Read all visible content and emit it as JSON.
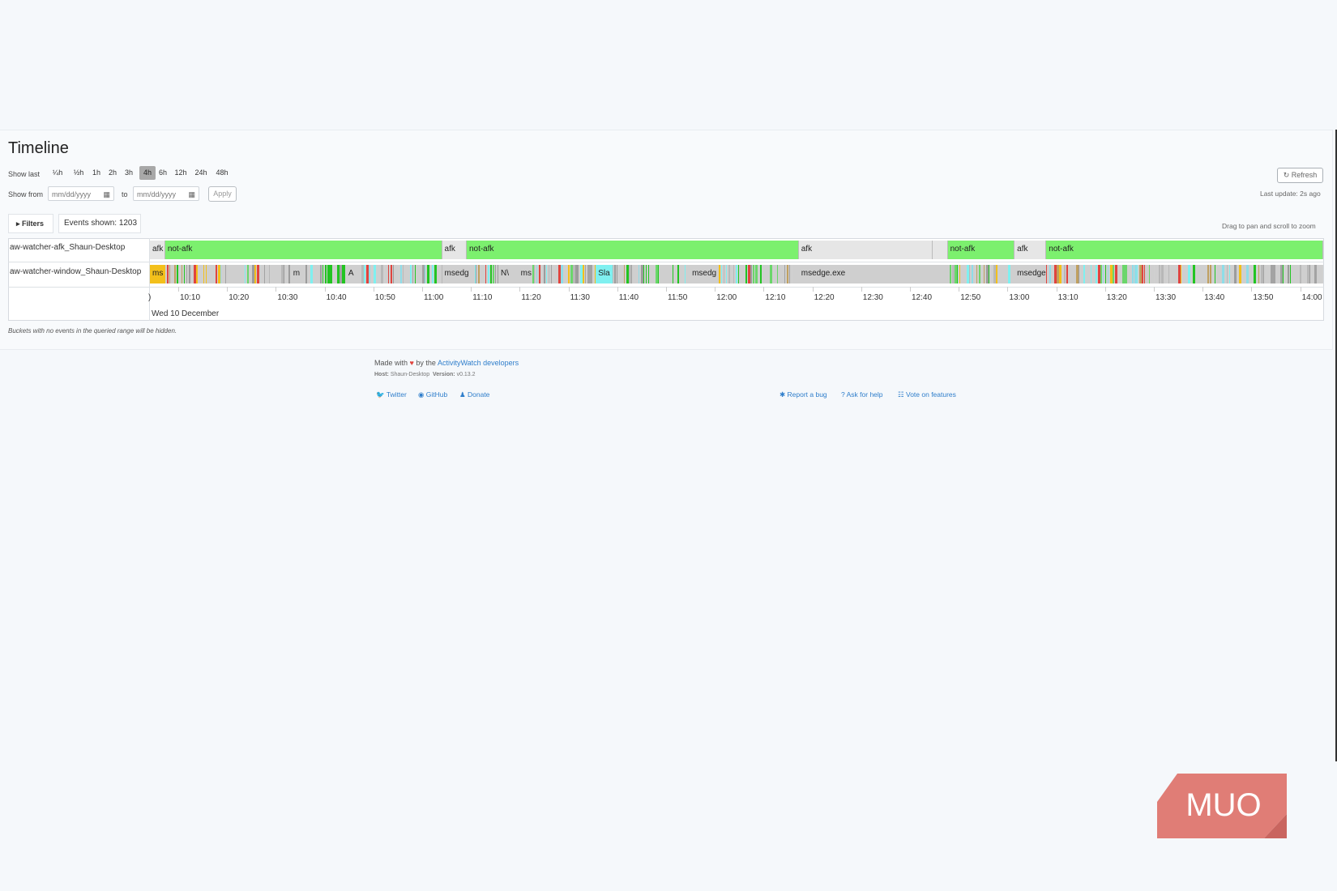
{
  "page": {
    "title": "Timeline"
  },
  "controls": {
    "show_last_label": "Show last",
    "ranges": [
      {
        "label": "¼h",
        "active": false
      },
      {
        "label": "½h",
        "active": false
      },
      {
        "label": "1h",
        "active": false
      },
      {
        "label": "2h",
        "active": false
      },
      {
        "label": "3h",
        "active": false
      },
      {
        "label": "4h",
        "active": true
      },
      {
        "label": "6h",
        "active": false
      },
      {
        "label": "12h",
        "active": false
      },
      {
        "label": "24h",
        "active": false
      },
      {
        "label": "48h",
        "active": false
      }
    ],
    "show_from_label": "Show from",
    "from_placeholder": "mm/dd/yyyy",
    "to_label": "to",
    "to_placeholder": "mm/dd/yyyy",
    "apply_label": "Apply",
    "refresh_label": "Refresh",
    "last_update": "Last update: 2s ago",
    "filters_label": "Filters",
    "events_shown": "Events shown: 1203",
    "drag_hint": "Drag to pan and scroll to zoom"
  },
  "timeline": {
    "rows": [
      {
        "label": "aw-watcher-afk_Shaun-Desktop"
      },
      {
        "label": "aw-watcher-window_Shaun-Desktop"
      }
    ],
    "afk_segments": [
      {
        "label": "afk",
        "start": 0.0,
        "end": 0.013,
        "color": "#e6e6e6"
      },
      {
        "label": "not-afk",
        "start": 0.013,
        "end": 0.249,
        "color": "#7cf06e"
      },
      {
        "label": "afk",
        "start": 0.249,
        "end": 0.27,
        "color": "#e6e6e6"
      },
      {
        "label": "not-afk",
        "start": 0.27,
        "end": 0.553,
        "color": "#7cf06e"
      },
      {
        "label": "afk",
        "start": 0.553,
        "end": 0.667,
        "color": "#e6e6e6"
      },
      {
        "label": "",
        "start": 0.667,
        "end": 0.68,
        "color": "#e6e6e6"
      },
      {
        "label": "not-afk",
        "start": 0.68,
        "end": 0.737,
        "color": "#7cf06e"
      },
      {
        "label": "afk",
        "start": 0.737,
        "end": 0.764,
        "color": "#e6e6e6"
      },
      {
        "label": "not-afk",
        "start": 0.764,
        "end": 1.0,
        "color": "#7cf06e"
      }
    ],
    "window_labels": [
      {
        "label": "ms",
        "start": 0.0,
        "end": 0.013,
        "color": "#f3c01b"
      },
      {
        "label": "m",
        "start": 0.12,
        "end": 0.132,
        "color": "#cfcfcf"
      },
      {
        "label": "A",
        "start": 0.167,
        "end": 0.176,
        "color": "#cfcfcf"
      },
      {
        "label": "msedg",
        "start": 0.249,
        "end": 0.277,
        "color": "#cfcfcf"
      },
      {
        "label": "N\\",
        "start": 0.297,
        "end": 0.308,
        "color": "#cfcfcf"
      },
      {
        "label": "ms",
        "start": 0.314,
        "end": 0.326,
        "color": "#cfcfcf"
      },
      {
        "label": "Sla",
        "start": 0.38,
        "end": 0.394,
        "color": "#7ff0f0"
      },
      {
        "label": "msedg",
        "start": 0.46,
        "end": 0.485,
        "color": "#cfcfcf"
      },
      {
        "label": "msedge.exe",
        "start": 0.553,
        "end": 0.68,
        "color": "#cfcfcf"
      },
      {
        "label": "msedge",
        "start": 0.737,
        "end": 0.764,
        "color": "#cfcfcf"
      }
    ],
    "ticks": [
      "10:10",
      "10:20",
      "10:30",
      "10:40",
      "10:50",
      "11:00",
      "11:10",
      "11:20",
      "11:30",
      "11:40",
      "11:50",
      "12:00",
      "12:10",
      "12:20",
      "12:30",
      "12:40",
      "12:50",
      "13:00",
      "13:10",
      "13:20",
      "13:30",
      "13:40",
      "13:50",
      "14:00"
    ],
    "date_label": "Wed 10 December",
    "hidden_note": "Buckets with no events in the queried range will be hidden."
  },
  "footer": {
    "made_with": "Made with",
    "by_the": "by the",
    "developers_link": "ActivityWatch developers",
    "host_label": "Host:",
    "host_value": "Shaun-Desktop",
    "version_label": "Version:",
    "version_value": "v0.13.2",
    "links_left": [
      "Twitter",
      "GitHub",
      "Donate"
    ],
    "links_right": [
      "Report a bug",
      "Ask for help",
      "Vote on features"
    ]
  },
  "watermark": {
    "text": "MUO"
  },
  "colors": {
    "accent": "#2f7ecb",
    "active_range": "#a8a8a8",
    "not_afk": "#7cf06e",
    "afk": "#e6e6e6"
  }
}
